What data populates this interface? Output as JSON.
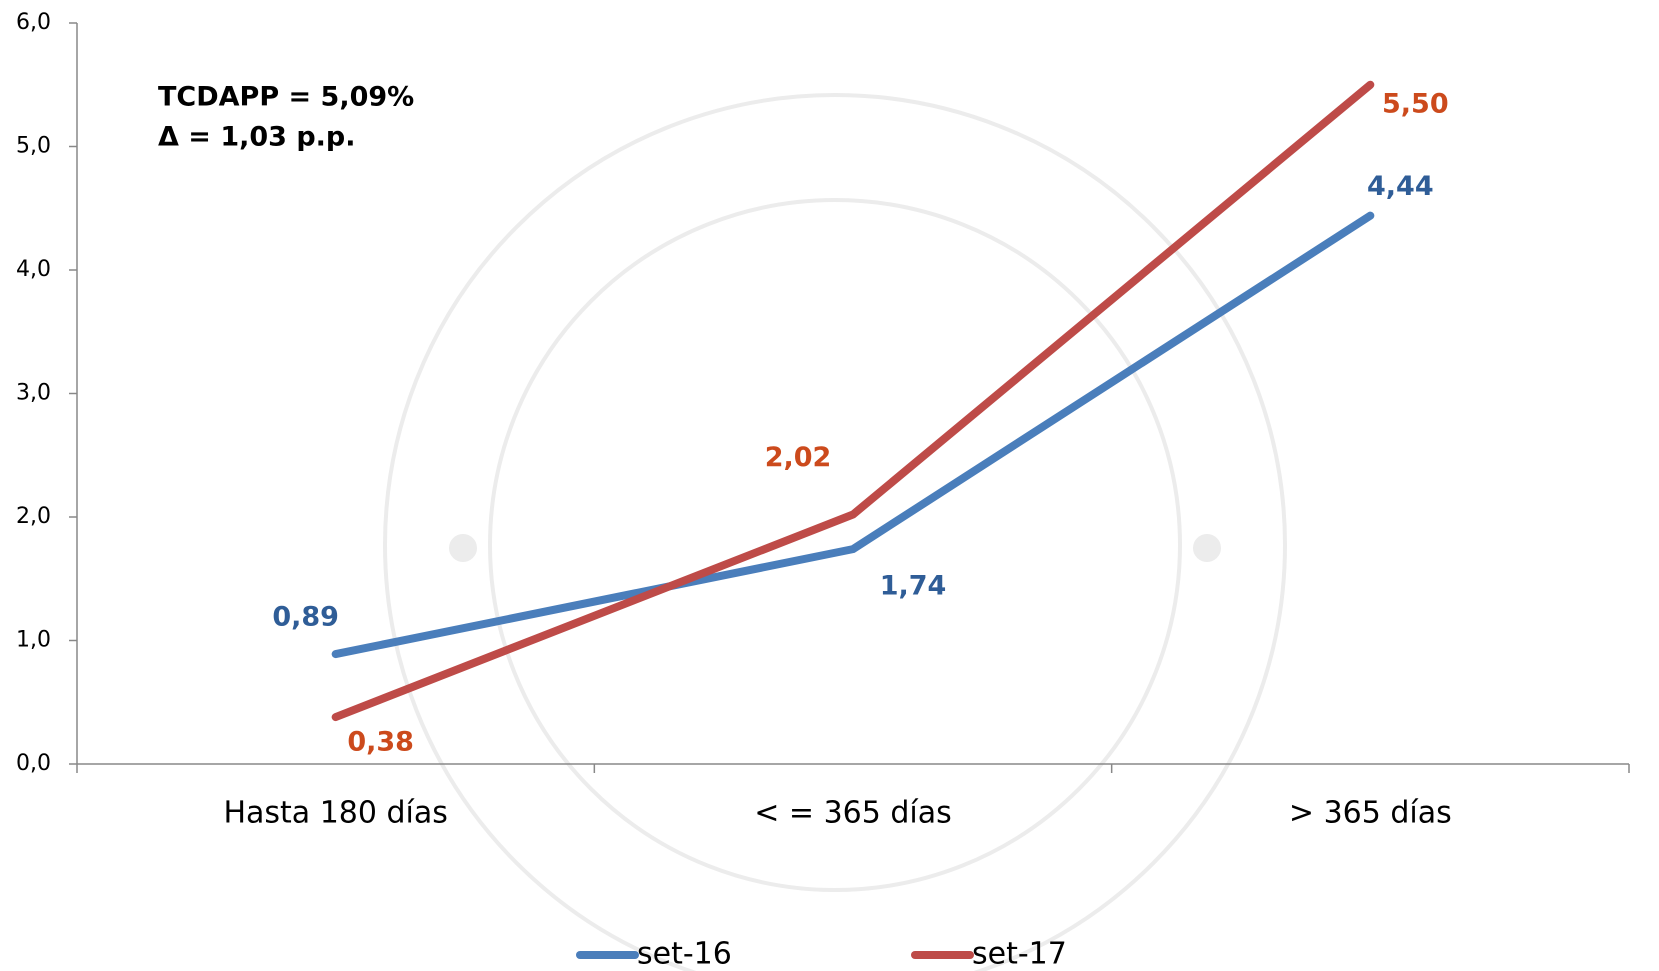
{
  "chart_data": {
    "type": "line",
    "annotations": [
      "TCDAPP = 5,09%",
      "Δ = 1,03 p.p."
    ],
    "categories": [
      "Hasta 180 días",
      "< = 365 días",
      "> 365 días"
    ],
    "series": [
      {
        "name": "set-16",
        "color": "#4a7ebb",
        "label_color": "#2f5d97",
        "values": [
          0.89,
          1.74,
          4.44
        ],
        "value_labels": [
          "0,89",
          "1,74",
          "4,44"
        ]
      },
      {
        "name": "set-17",
        "color": "#be4b48",
        "label_color": "#cc4a1c",
        "values": [
          0.38,
          2.02,
          5.5
        ],
        "value_labels": [
          "0,38",
          "2,02",
          "5,50"
        ]
      }
    ],
    "ylim": [
      0,
      6
    ],
    "yticks": [
      {
        "value": 0,
        "label": "0,0"
      },
      {
        "value": 1,
        "label": "1,0"
      },
      {
        "value": 2,
        "label": "2,0"
      },
      {
        "value": 3,
        "label": "3,0"
      },
      {
        "value": 4,
        "label": "4,0"
      },
      {
        "value": 5,
        "label": "5,0"
      },
      {
        "value": 6,
        "label": "6,0"
      }
    ],
    "legend": "bottom"
  }
}
